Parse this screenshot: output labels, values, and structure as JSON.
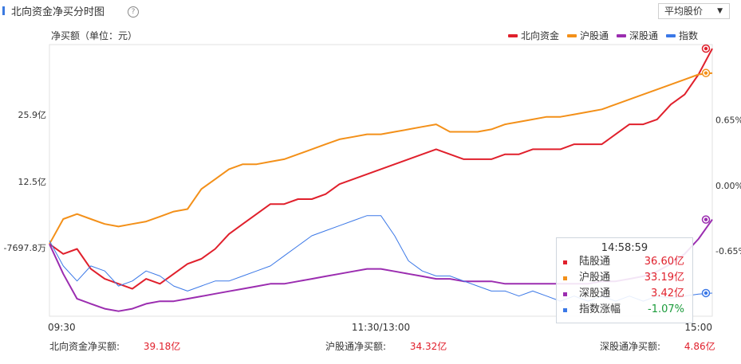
{
  "header": {
    "title": "北向资金净买分时图",
    "help_icon": "question-circle-icon",
    "selector_value": "平均股价",
    "unit_label": "净买额（单位：元）"
  },
  "legend": [
    {
      "name": "北向资金",
      "color": "#e0202c"
    },
    {
      "name": "沪股通",
      "color": "#f39019"
    },
    {
      "name": "深股通",
      "color": "#9b2db0"
    },
    {
      "name": "指数",
      "color": "#3b78e7"
    }
  ],
  "tooltip": {
    "time": "14:58:59",
    "rows": [
      {
        "name": "陆股通",
        "value": "36.60亿",
        "color": "#e0202c",
        "value_color": "#e0202c"
      },
      {
        "name": "沪股通",
        "value": "33.19亿",
        "color": "#f39019",
        "value_color": "#e0202c"
      },
      {
        "name": "深股通",
        "value": "3.42亿",
        "color": "#9b2db0",
        "value_color": "#e0202c"
      },
      {
        "name": "指数涨幅",
        "value": "-1.07%",
        "color": "#3b78e7",
        "value_color": "#1a9b3a"
      }
    ]
  },
  "footer": {
    "northbound": {
      "label": "北向资金净买额:",
      "value": "39.18亿"
    },
    "sh": {
      "label": "沪股通净买额:",
      "value": "34.32亿"
    },
    "sz": {
      "label": "深股通净买额:",
      "value": "4.86亿"
    }
  },
  "chart_data": {
    "type": "line",
    "x_ticks": [
      "09:30",
      "11:30/13:00",
      "15:00"
    ],
    "y_left_ticks": [
      {
        "label": "25.9亿",
        "value": 25.9
      },
      {
        "label": "12.5亿",
        "value": 12.5
      },
      {
        "label": "-7697.8万",
        "value": -0.77
      }
    ],
    "y_left_range": [
      -14.5,
      40
    ],
    "y_right_ticks": [
      {
        "label": "0.65%",
        "value": 0.65
      },
      {
        "label": "0.00%",
        "value": 0.0
      },
      {
        "label": "-0.65%",
        "value": -0.65
      }
    ],
    "y_right_range": [
      -1.3,
      1.4
    ],
    "x_range": [
      0,
      240
    ],
    "series": [
      {
        "name": "北向资金",
        "color": "#e0202c",
        "axis": "left",
        "x": [
          0,
          5,
          10,
          15,
          20,
          25,
          30,
          35,
          40,
          45,
          50,
          55,
          60,
          65,
          70,
          75,
          80,
          85,
          90,
          95,
          100,
          105,
          110,
          115,
          120,
          125,
          130,
          135,
          140,
          145,
          150,
          155,
          160,
          165,
          170,
          175,
          180,
          185,
          190,
          195,
          200,
          205,
          210,
          215,
          220,
          225,
          230,
          235,
          240
        ],
        "y": [
          0,
          -2,
          -1,
          -5,
          -7,
          -8,
          -9,
          -7,
          -8,
          -6,
          -4,
          -3,
          -1,
          2,
          4,
          6,
          8,
          8,
          9,
          9,
          10,
          12,
          13,
          14,
          15,
          16,
          17,
          18,
          19,
          18,
          17,
          17,
          17,
          18,
          18,
          19,
          19,
          19,
          20,
          20,
          20,
          22,
          24,
          24,
          25,
          28,
          30,
          34,
          39.2
        ]
      },
      {
        "name": "沪股通",
        "color": "#f39019",
        "axis": "left",
        "x": [
          0,
          5,
          10,
          15,
          20,
          25,
          30,
          35,
          40,
          45,
          50,
          55,
          60,
          65,
          70,
          75,
          80,
          85,
          90,
          95,
          100,
          105,
          110,
          115,
          120,
          125,
          130,
          135,
          140,
          145,
          150,
          155,
          160,
          165,
          170,
          175,
          180,
          185,
          190,
          195,
          200,
          205,
          210,
          215,
          220,
          225,
          230,
          235,
          240
        ],
        "y": [
          0,
          5,
          6,
          5,
          4,
          3.5,
          4,
          4.5,
          5.5,
          6.5,
          7,
          11,
          13,
          15,
          16,
          16,
          16.5,
          17,
          18,
          19,
          20,
          21,
          21.5,
          22,
          22,
          22.5,
          23,
          23.5,
          24,
          22.5,
          22.5,
          22.5,
          23,
          24,
          24.5,
          25,
          25.5,
          25.5,
          26,
          26.5,
          27,
          28,
          29,
          30,
          31,
          32,
          33,
          34,
          34.3
        ]
      },
      {
        "name": "深股通",
        "color": "#9b2db0",
        "axis": "left",
        "x": [
          0,
          5,
          10,
          15,
          20,
          25,
          30,
          35,
          40,
          45,
          50,
          55,
          60,
          65,
          70,
          75,
          80,
          85,
          90,
          95,
          100,
          105,
          110,
          115,
          120,
          125,
          130,
          135,
          140,
          145,
          150,
          155,
          160,
          165,
          170,
          175,
          180,
          185,
          190,
          195,
          200,
          205,
          210,
          215,
          220,
          225,
          230,
          235,
          240
        ],
        "y": [
          0,
          -6,
          -11,
          -12,
          -13,
          -13.5,
          -13,
          -12,
          -11.5,
          -11.5,
          -11,
          -10.5,
          -10,
          -9.5,
          -9,
          -8.5,
          -8,
          -8,
          -7.5,
          -7,
          -6.5,
          -6,
          -5.5,
          -5,
          -5,
          -5.5,
          -6,
          -6.5,
          -7,
          -7,
          -7.5,
          -7.5,
          -7.5,
          -8,
          -8,
          -8,
          -8,
          -8,
          -8,
          -8,
          -7.5,
          -7.5,
          -7,
          -6.5,
          -5.5,
          -4,
          -2,
          1,
          4.9
        ]
      },
      {
        "name": "指数",
        "color": "#3b78e7",
        "axis": "right",
        "x": [
          0,
          5,
          10,
          15,
          20,
          25,
          30,
          35,
          40,
          45,
          50,
          55,
          60,
          65,
          70,
          75,
          80,
          85,
          90,
          95,
          100,
          105,
          110,
          115,
          120,
          125,
          130,
          135,
          140,
          145,
          150,
          155,
          160,
          165,
          170,
          175,
          180,
          185,
          190,
          195,
          200,
          205,
          210,
          215,
          220,
          225,
          230,
          235,
          240
        ],
        "y": [
          -0.55,
          -0.8,
          -0.95,
          -0.8,
          -0.85,
          -1.0,
          -0.95,
          -0.85,
          -0.9,
          -1.0,
          -1.05,
          -1.0,
          -0.95,
          -0.95,
          -0.9,
          -0.85,
          -0.8,
          -0.7,
          -0.6,
          -0.5,
          -0.45,
          -0.4,
          -0.35,
          -0.3,
          -0.3,
          -0.5,
          -0.75,
          -0.85,
          -0.9,
          -0.9,
          -0.95,
          -1.0,
          -1.05,
          -1.05,
          -1.1,
          -1.05,
          -1.1,
          -1.15,
          -1.1,
          -1.15,
          -1.1,
          -1.15,
          -1.1,
          -1.15,
          -1.1,
          -1.12,
          -1.1,
          -1.08,
          -1.07
        ]
      }
    ]
  }
}
